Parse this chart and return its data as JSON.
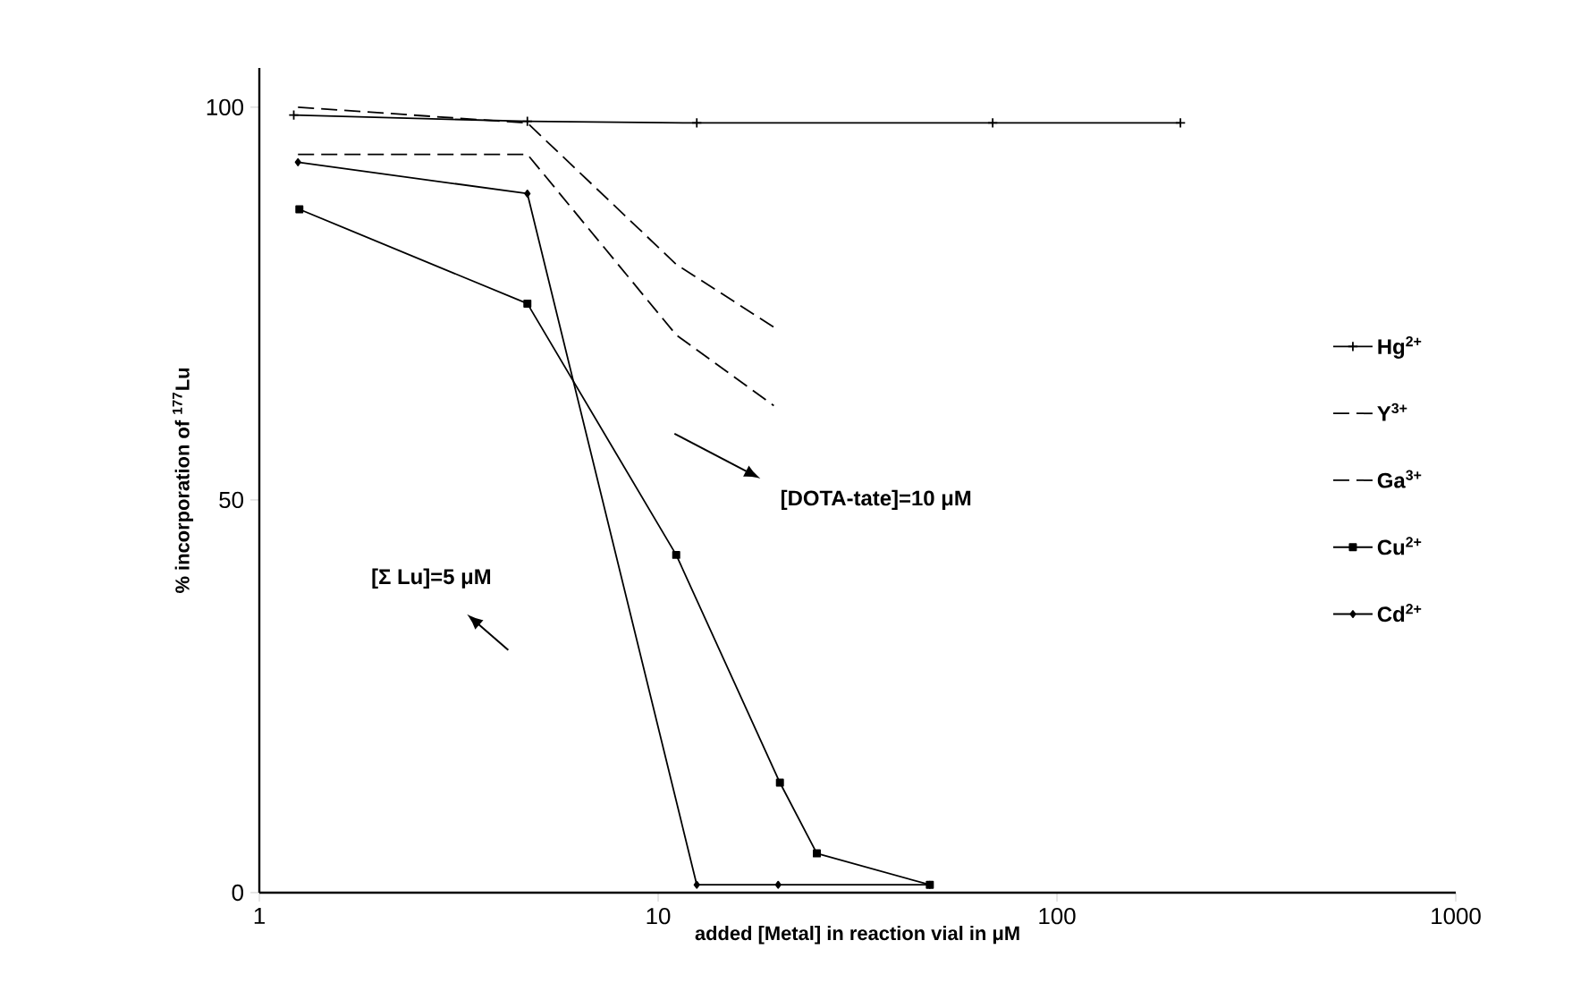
{
  "chart_data": {
    "type": "line",
    "xlabel": "added [Metal] in reaction vial in μM",
    "ylabel": "% incorporation of $^{177}$Lu",
    "log": "x",
    "xlim": [
      1,
      1000
    ],
    "ylim": [
      0,
      105
    ],
    "xticks": [
      1,
      10,
      100,
      1000
    ],
    "yticks": [
      0,
      50,
      100
    ],
    "grid": false,
    "legend": "right",
    "series": [
      {
        "name": "Hg$^{2+}$",
        "color": "#000000",
        "marker": "cross",
        "line_style": "solid",
        "x": [
          1.22,
          4.7,
          12.5,
          69,
          204
        ],
        "values": [
          99,
          98.2,
          98,
          98,
          98
        ]
      },
      {
        "name": "Y$^{3+}$",
        "color": "#000000",
        "marker": "none",
        "line_style": "dashed",
        "x": [
          1.25,
          4.7,
          11.1,
          19.5
        ],
        "values": [
          100,
          98,
          80,
          72
        ]
      },
      {
        "name": "Ga$^{3+}$",
        "color": "#000000",
        "marker": "none",
        "line_style": "dashed",
        "x": [
          1.25,
          4.7,
          11.1,
          19.5
        ],
        "values": [
          94,
          94,
          71,
          62
        ]
      },
      {
        "name": "Cu$^{2+}$",
        "color": "#000000",
        "marker": "square",
        "line_style": "solid",
        "x": [
          1.26,
          4.7,
          11.1,
          20.2,
          25,
          48
        ],
        "values": [
          87,
          75,
          43,
          14,
          5,
          1
        ]
      },
      {
        "name": "Cd$^{2+}$",
        "color": "#000000",
        "marker": "diamond",
        "line_style": "solid",
        "x": [
          1.25,
          4.7,
          12.5,
          20,
          48
        ],
        "values": [
          93,
          89,
          1,
          1,
          1
        ]
      }
    ],
    "annotations": [
      "[DOTA-tate]=10 μM",
      "[Σ Lu]=5 μM"
    ]
  }
}
